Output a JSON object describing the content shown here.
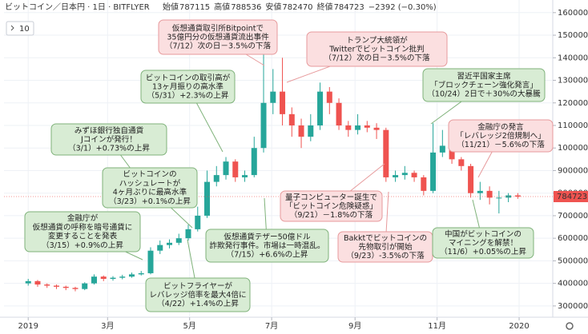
{
  "chart_data": {
    "type": "candlestick",
    "title": "ビットコイン／日本円 · 1日 · BITFLYER",
    "ohlc_legend": [
      {
        "label": "始値",
        "value": 787115
      },
      {
        "label": "高値",
        "value": 788536
      },
      {
        "label": "安値",
        "value": 782470
      },
      {
        "label": "終値",
        "value": 784723
      }
    ],
    "change": "−2392 (−0.30%)",
    "interval_button": "10",
    "last_price": 784723,
    "up_color": "#26a69a",
    "down_color": "#ef5350",
    "grid": true,
    "xlim": [
      -18,
      390
    ],
    "xticks": [
      {
        "value": 0,
        "label": "2019"
      },
      {
        "value": 59,
        "label": "3月"
      },
      {
        "value": 120,
        "label": "5月"
      },
      {
        "value": 181,
        "label": "7月"
      },
      {
        "value": 243,
        "label": "9月"
      },
      {
        "value": 304,
        "label": "11月"
      },
      {
        "value": 365,
        "label": "2020"
      }
    ],
    "ylim": [
      250000,
      1656000
    ],
    "yticks": [
      300000,
      400000,
      500000,
      600000,
      700000,
      800000,
      900000,
      1000000,
      1100000,
      1200000,
      1300000,
      1400000,
      1500000,
      1600000
    ],
    "x": [
      0,
      7,
      14,
      21,
      28,
      35,
      42,
      49,
      56,
      63,
      70,
      77,
      84,
      91,
      98,
      105,
      112,
      119,
      126,
      133,
      140,
      147,
      154,
      161,
      168,
      175,
      182,
      189,
      196,
      203,
      210,
      217,
      224,
      231,
      238,
      245,
      252,
      259,
      266,
      273,
      280,
      287,
      294,
      301,
      308,
      315,
      322,
      329,
      336,
      343,
      350,
      357,
      364
    ],
    "open": [
      400000,
      410000,
      395000,
      390000,
      385000,
      380000,
      375000,
      400000,
      430000,
      420000,
      425000,
      430000,
      440000,
      445000,
      545000,
      570000,
      580000,
      600000,
      640000,
      700000,
      850000,
      880000,
      940000,
      870000,
      880000,
      1000000,
      1200000,
      1250000,
      1150000,
      1100000,
      1050000,
      1100000,
      1250000,
      1200000,
      1100000,
      1080000,
      1100000,
      1090000,
      1080000,
      870000,
      880000,
      890000,
      870000,
      810000,
      980000,
      1010000,
      950000,
      920000,
      800000,
      810000,
      780000,
      780000,
      790000
    ],
    "high": [
      420000,
      415000,
      400000,
      395000,
      390000,
      385000,
      405000,
      440000,
      435000,
      432000,
      438000,
      448000,
      455000,
      560000,
      590000,
      595000,
      620000,
      660000,
      740000,
      900000,
      920000,
      960000,
      950000,
      900000,
      1050000,
      1450000,
      1350000,
      1400000,
      1180000,
      1130000,
      1150000,
      1290000,
      1270000,
      1220000,
      1120000,
      1150000,
      1120000,
      1110000,
      1090000,
      900000,
      920000,
      900000,
      880000,
      1110000,
      1080000,
      1020000,
      960000,
      930000,
      850000,
      830000,
      810000,
      800000,
      800000
    ],
    "low": [
      390000,
      385000,
      380000,
      375000,
      370000,
      365000,
      370000,
      395000,
      410000,
      412000,
      418000,
      425000,
      435000,
      440000,
      530000,
      555000,
      570000,
      590000,
      630000,
      690000,
      830000,
      860000,
      850000,
      850000,
      870000,
      980000,
      1150000,
      1100000,
      1050000,
      1000000,
      1030000,
      1080000,
      1150000,
      1080000,
      1050000,
      1060000,
      1070000,
      1040000,
      850000,
      850000,
      860000,
      850000,
      790000,
      800000,
      960000,
      930000,
      900000,
      780000,
      770000,
      750000,
      710000,
      760000,
      775000
    ],
    "close": [
      410000,
      395000,
      390000,
      385000,
      380000,
      375000,
      400000,
      430000,
      420000,
      425000,
      430000,
      440000,
      445000,
      545000,
      570000,
      580000,
      600000,
      640000,
      700000,
      850000,
      880000,
      940000,
      870000,
      880000,
      1000000,
      1200000,
      1250000,
      1150000,
      1100000,
      1050000,
      1100000,
      1250000,
      1200000,
      1100000,
      1080000,
      1100000,
      1090000,
      1080000,
      870000,
      880000,
      890000,
      870000,
      810000,
      980000,
      1010000,
      950000,
      920000,
      800000,
      810000,
      780000,
      780000,
      790000,
      784723
    ],
    "annotations": [
      {
        "color": "#fbdfe0",
        "lines": [
          "仮想通貨取引所Bitpointで",
          "35億円分の仮想通貨流出事件",
          "（7/12）次の日－3.5%の下落"
        ]
      },
      {
        "color": "#fbdfe0",
        "lines": [
          "トランプ大統領が",
          "Twitterでビットコイン批判",
          "（7/12）次の日－3.5%の下落"
        ]
      },
      {
        "color": "#d8ecd4",
        "lines": [
          "ビットコインの取引高が",
          "13ヶ月振りの高水準",
          "（5/31）+2.3%の上昇"
        ]
      },
      {
        "color": "#d8ecd4",
        "lines": [
          "習近平国家主席",
          "「ブロックチェーン強化発言」",
          "（10/24）2日で＋30%の大暴騰"
        ]
      },
      {
        "color": "#d8ecd4",
        "lines": [
          "みずほ銀行独自通貨",
          "Jコインが発行！",
          "（3/1）+0.73%の上昇"
        ]
      },
      {
        "color": "#fbdfe0",
        "lines": [
          "金融庁の発言",
          "「レバレッジ2倍規制へ」",
          "（11/21）－5.6%の下落"
        ]
      },
      {
        "color": "#d8ecd4",
        "lines": [
          "ビットコインの",
          "ハッシュレートが",
          "4ヶ月ぶりに最高水準",
          "（3/23）+0.1%の上昇"
        ]
      },
      {
        "color": "#fbdfe0",
        "lines": [
          "量子コンピューター誕生で",
          "「ビットコイン危険疑惑」",
          "（9/21）－1.8%の下落"
        ]
      },
      {
        "color": "#d8ecd4",
        "lines": [
          "金融庁が",
          "仮想通貨の呼称を暗号通貨に",
          "変更することを発表",
          "（3/15）+0.9%の上昇"
        ]
      },
      {
        "color": "#d8ecd4",
        "lines": [
          "仮想通貨テザー50億ドル",
          "詐欺発行事件。市場は一時混乱。",
          "（7/15）+6.6%の上昇"
        ]
      },
      {
        "color": "#fbdfe0",
        "lines": [
          "Bakktでビットコインの",
          "先物取引が開始",
          "（9/23）-3.5%の下落"
        ]
      },
      {
        "color": "#d8ecd4",
        "lines": [
          "中国がビットコインの",
          "マイニングを解禁！",
          "（11/6）+0.05%の上昇"
        ]
      },
      {
        "color": "#d8ecd4",
        "lines": [
          "ビットフライヤーが",
          "レバレッジ倍率を最大4倍に",
          "（4/22）+1.4%の上昇"
        ]
      }
    ]
  }
}
